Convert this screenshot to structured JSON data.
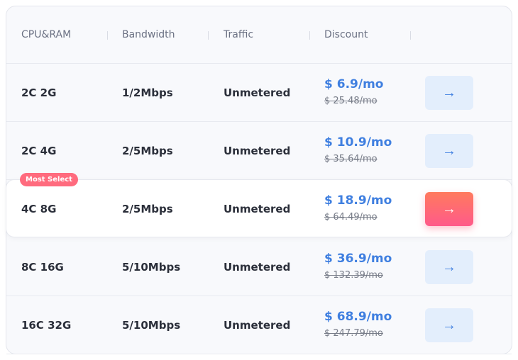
{
  "header": [
    "CPU&RAM",
    "Bandwidth",
    "Traffic",
    "Discount"
  ],
  "badge": "Most Select",
  "rows": [
    {
      "cpu": "2C 2G",
      "bw": "1/2Mbps",
      "traffic": "Unmetered",
      "price": "$ 6.9/mo",
      "old": "$ 25.48/mo"
    },
    {
      "cpu": "2C 4G",
      "bw": "2/5Mbps",
      "traffic": "Unmetered",
      "price": "$ 10.9/mo",
      "old": "$ 35.64/mo"
    },
    {
      "cpu": "4C 8G",
      "bw": "2/5Mbps",
      "traffic": "Unmetered",
      "price": "$ 18.9/mo",
      "old": "$ 64.49/mo"
    },
    {
      "cpu": "8C 16G",
      "bw": "5/10Mbps",
      "traffic": "Unmetered",
      "price": "$ 36.9/mo",
      "old": "$ 132.39/mo"
    },
    {
      "cpu": "16C 32G",
      "bw": "5/10Mbps",
      "traffic": "Unmetered",
      "price": "$ 68.9/mo",
      "old": "$ 247.79/mo"
    }
  ],
  "highlighted_row": 2,
  "icons": {
    "button": "arrow-right-icon"
  },
  "colors": {
    "accent": "#3f7fe0",
    "hot": "#ff6b7e"
  }
}
